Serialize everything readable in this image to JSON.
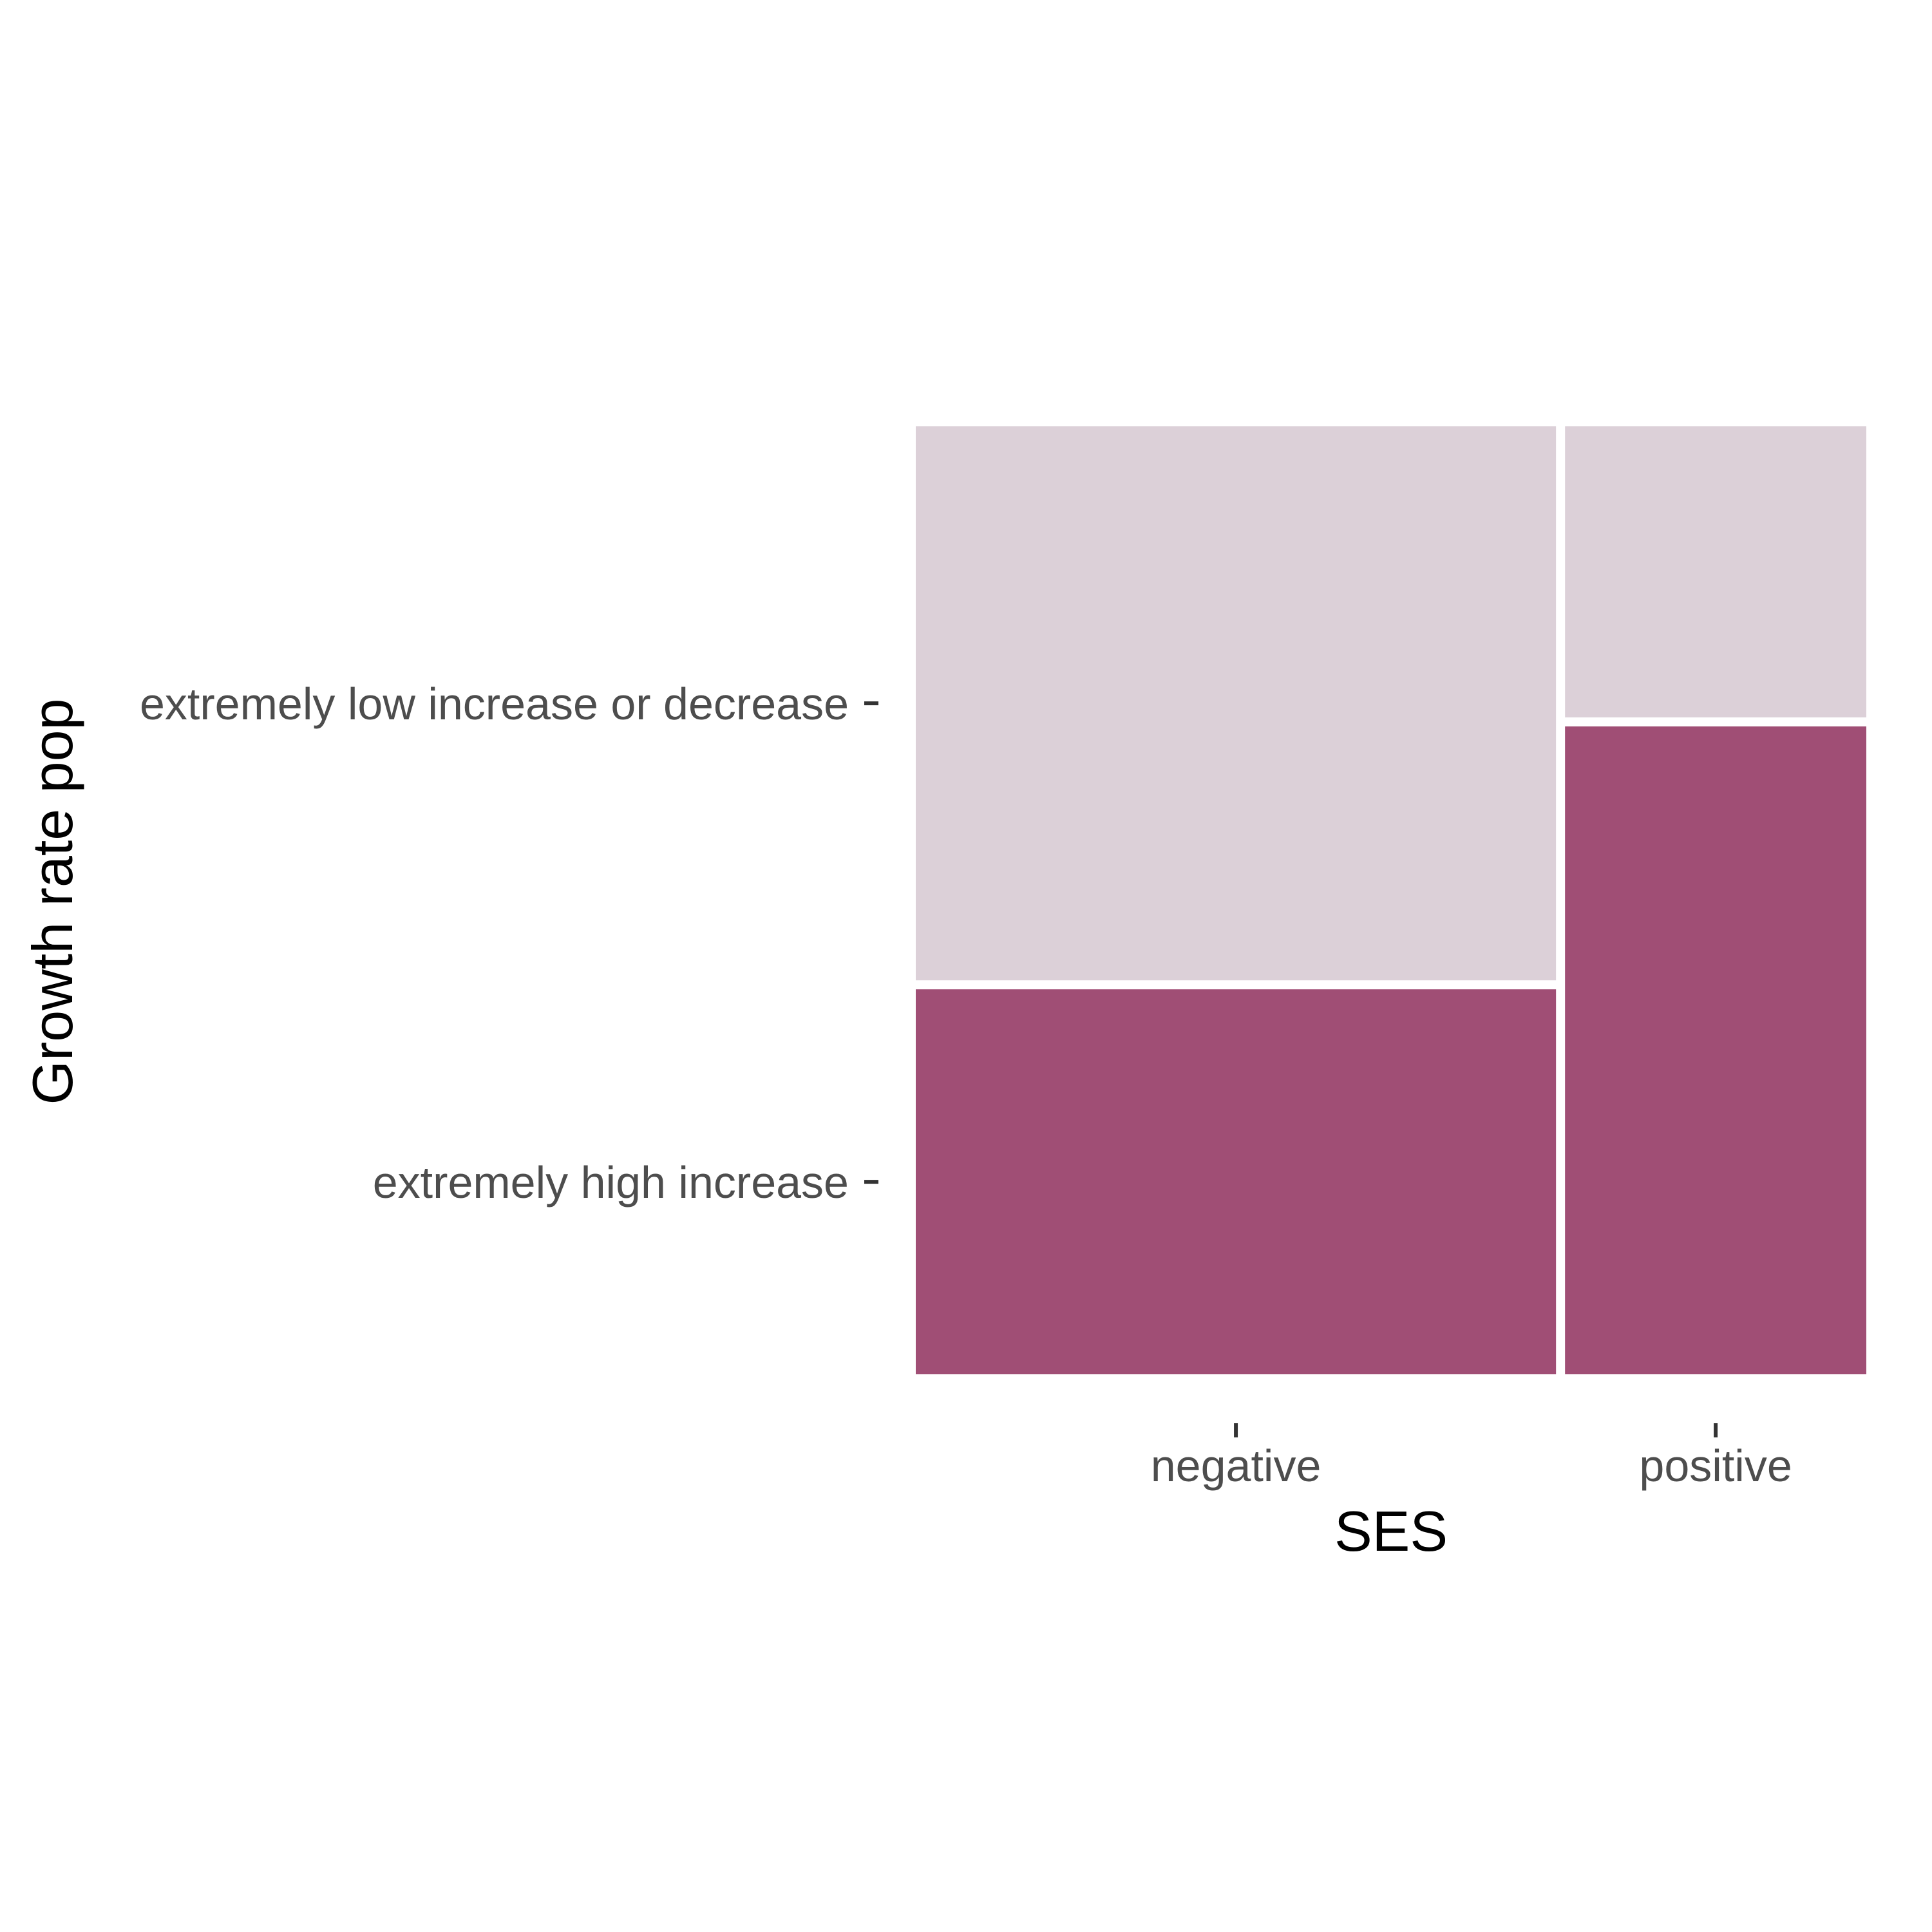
{
  "chart_data": {
    "type": "mosaic",
    "xlabel": "SES",
    "ylabel": "Growth rate pop",
    "x_categories": [
      "negative",
      "positive"
    ],
    "y_categories": [
      "extremely high increase",
      "extremely low increase or decrease"
    ],
    "column_proportions": [
      0.68,
      0.32
    ],
    "cell_proportions": [
      {
        "x": "negative",
        "y": "extremely high increase",
        "value": 0.41
      },
      {
        "x": "negative",
        "y": "extremely low increase or decrease",
        "value": 0.59
      },
      {
        "x": "positive",
        "y": "extremely high increase",
        "value": 0.69
      },
      {
        "x": "positive",
        "y": "extremely low increase or decrease",
        "value": 0.31
      }
    ],
    "colors": {
      "extremely high increase": "#a04e75",
      "extremely low increase or decrease": "#dcd0d8"
    },
    "legend": "none",
    "grid": false
  }
}
